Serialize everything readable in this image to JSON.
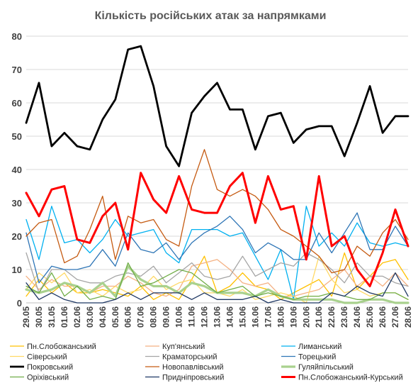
{
  "chart_data": {
    "type": "line",
    "title": "Кількість російських атак за напрямками",
    "ylim": [
      0,
      80
    ],
    "yticks": [
      0,
      10,
      20,
      30,
      40,
      50,
      60,
      70,
      80
    ],
    "grid": true,
    "legend_position": "bottom",
    "categories": [
      "29.05",
      "30.05",
      "31.05",
      "01.06",
      "02.06",
      "03.06",
      "04.06",
      "05.06",
      "06.06",
      "07.06",
      "08.06",
      "09.06",
      "10.06",
      "11.06",
      "12.06",
      "13.06",
      "14.06",
      "15.06",
      "16.06",
      "17.06",
      "18.06",
      "19.06",
      "20.06",
      "21.06",
      "22.06",
      "23.06",
      "24.06",
      "25.06",
      "26.06",
      "27.06",
      "28.06"
    ],
    "tick_labels": [
      "29.05",
      "30.05",
      "31.05",
      "01.06",
      "02.06",
      "03.06",
      "04.06",
      "05.06",
      "06.06",
      "07.06",
      "08.06",
      "09.06",
      "10.06",
      "11.06",
      "12.06",
      "13.06",
      "14.06",
      "15.06",
      "16.06",
      "17.06",
      "18.06",
      "19.06",
      "20.06",
      "21.06",
      "22.06",
      "23.06",
      "24.06",
      "25.06",
      "26.06",
      "27.06",
      "28.06"
    ],
    "series": [
      {
        "name": "Пн.Слобожанський",
        "color": "#FFC000",
        "width": 1.3,
        "values": [
          2,
          7,
          3,
          6,
          3,
          3,
          4,
          3,
          2,
          5,
          1,
          3,
          1,
          7,
          14,
          3,
          5,
          9,
          5,
          4,
          1,
          3,
          5,
          7,
          2,
          15,
          4,
          8,
          12,
          13,
          7
        ]
      },
      {
        "name": "Куп'янський",
        "color": "#F4B183",
        "width": 1.3,
        "values": [
          8,
          4,
          7,
          5,
          5,
          3,
          5,
          5,
          8,
          6,
          3,
          2,
          4,
          11,
          12,
          13,
          10,
          6,
          5,
          6,
          2,
          2,
          3,
          4,
          7,
          10,
          5,
          8,
          5,
          9,
          5
        ]
      },
      {
        "name": "Лиманський",
        "color": "#00B0F0",
        "width": 1.3,
        "values": [
          25,
          13,
          29,
          18,
          19,
          15,
          19,
          25,
          20,
          21,
          22,
          15,
          12,
          22,
          22,
          22,
          20,
          21,
          14,
          7,
          16,
          1,
          29,
          17,
          21,
          17,
          24,
          18,
          17,
          18,
          17
        ]
      },
      {
        "name": "Сіверський",
        "color": "#FFD966",
        "width": 1.3,
        "values": [
          4,
          9,
          6,
          9,
          3,
          4,
          2,
          5,
          3,
          4,
          8,
          4,
          6,
          7,
          3,
          3,
          2,
          4,
          1,
          2,
          3,
          2,
          0,
          14,
          7,
          3,
          4,
          2,
          3,
          3,
          1
        ]
      },
      {
        "name": "Краматорський",
        "color": "#A5A5A5",
        "width": 1.3,
        "values": [
          15,
          3,
          10,
          10,
          7,
          6,
          6,
          8,
          9,
          8,
          11,
          6,
          9,
          12,
          8,
          7,
          8,
          14,
          8,
          10,
          12,
          11,
          15,
          13,
          10,
          6,
          12,
          8,
          8,
          6,
          5
        ]
      },
      {
        "name": "Торецький",
        "color": "#2E75B6",
        "width": 1.3,
        "values": [
          21,
          6,
          11,
          10,
          10,
          11,
          16,
          11,
          21,
          16,
          15,
          18,
          13,
          18,
          21,
          23,
          26,
          22,
          15,
          18,
          16,
          13,
          13,
          21,
          15,
          21,
          27,
          16,
          16,
          23,
          17
        ]
      },
      {
        "name": "Покровський",
        "color": "#000000",
        "width": 2.8,
        "values": [
          54,
          66,
          47,
          51,
          47,
          46,
          55,
          61,
          76,
          77,
          65,
          47,
          41,
          57,
          62,
          66,
          58,
          58,
          46,
          56,
          57,
          48,
          52,
          53,
          53,
          44,
          54,
          65,
          51,
          56,
          56
        ]
      },
      {
        "name": "Новопавлівський",
        "color": "#C55A11",
        "width": 1.3,
        "values": [
          20,
          24,
          25,
          12,
          14,
          22,
          32,
          13,
          26,
          24,
          25,
          19,
          17,
          35,
          46,
          34,
          32,
          34,
          32,
          28,
          22,
          20,
          17,
          14,
          9,
          10,
          17,
          14,
          21,
          25,
          19
        ]
      },
      {
        "name": "Гуляйпільський",
        "color": "#A9D18E",
        "width": 3.2,
        "values": [
          4,
          3,
          4,
          6,
          5,
          3,
          6,
          2,
          11,
          7,
          5,
          5,
          3,
          6,
          5,
          3,
          3,
          3,
          2,
          4,
          2,
          1,
          1,
          1,
          1,
          0,
          0,
          1,
          1,
          0,
          0
        ]
      },
      {
        "name": "Оріхівський",
        "color": "#70AD47",
        "width": 1.3,
        "values": [
          5,
          3,
          9,
          2,
          5,
          1,
          2,
          1,
          12,
          5,
          6,
          8,
          10,
          9,
          6,
          3,
          4,
          5,
          2,
          3,
          2,
          1,
          2,
          2,
          3,
          2,
          1,
          1,
          3,
          3,
          1
        ]
      },
      {
        "name": "Придніпровський",
        "color": "#1F3864",
        "width": 1.3,
        "values": [
          6,
          1,
          3,
          1,
          0,
          0,
          0,
          1,
          3,
          1,
          3,
          3,
          3,
          1,
          3,
          1,
          1,
          1,
          2,
          0,
          1,
          0,
          0,
          0,
          3,
          2,
          5,
          3,
          2,
          9,
          2
        ]
      },
      {
        "name": "Пн.Слобожанський-Курський",
        "color": "#FF0000",
        "width": 3.0,
        "values": [
          33,
          26,
          34,
          35,
          19,
          18,
          26,
          30,
          16,
          39,
          31,
          27,
          38,
          28,
          27,
          27,
          35,
          39,
          24,
          38,
          28,
          29,
          13,
          38,
          17,
          20,
          10,
          5,
          15,
          28,
          17
        ]
      }
    ]
  }
}
